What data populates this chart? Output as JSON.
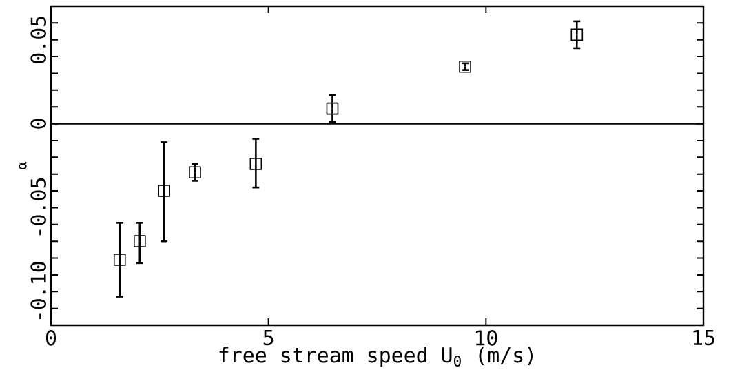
{
  "chart_data": {
    "type": "scatter",
    "xlabel": "free stream speed U$_{0}$ (m/s)",
    "ylabel": "α",
    "x": [
      1.58,
      2.04,
      2.6,
      3.31,
      4.71,
      6.47,
      9.52,
      12.09
    ],
    "values": [
      -0.081,
      -0.07,
      -0.04,
      -0.029,
      -0.024,
      0.009,
      0.034,
      0.053
    ],
    "errors": [
      [
        -0.103,
        -0.059
      ],
      [
        -0.083,
        -0.059
      ],
      [
        -0.07,
        -0.011
      ],
      [
        -0.034,
        -0.024
      ],
      [
        -0.038,
        -0.009
      ],
      [
        0.001,
        0.017
      ],
      [
        0.032,
        0.036
      ],
      [
        0.045,
        0.061
      ]
    ],
    "color": "#000000",
    "marker": "square",
    "xlim": [
      0,
      15
    ],
    "xticks": [
      0,
      5,
      10,
      15
    ],
    "ylim": [
      -0.12,
      0.07
    ],
    "yticks": [
      {
        "value": -0.11,
        "label": null
      },
      {
        "value": -0.1,
        "label": "-0.10"
      },
      {
        "value": -0.09,
        "label": null
      },
      {
        "value": -0.08,
        "label": null
      },
      {
        "value": -0.07,
        "label": null
      },
      {
        "value": -0.06,
        "label": null
      },
      {
        "value": -0.05,
        "label": "-0.05"
      },
      {
        "value": -0.04,
        "label": null
      },
      {
        "value": -0.03,
        "label": null
      },
      {
        "value": -0.02,
        "label": null
      },
      {
        "value": -0.01,
        "label": null
      },
      {
        "value": 0,
        "label": "0"
      },
      {
        "value": 0.01,
        "label": null
      },
      {
        "value": 0.02,
        "label": null
      },
      {
        "value": 0.03,
        "label": null
      },
      {
        "value": 0.04,
        "label": null
      },
      {
        "value": 0.05,
        "label": "0.05"
      },
      {
        "value": 0.06,
        "label": null
      }
    ],
    "ref_lines": [
      {
        "axis": "y",
        "value": 0,
        "color": "#000000"
      }
    ]
  }
}
